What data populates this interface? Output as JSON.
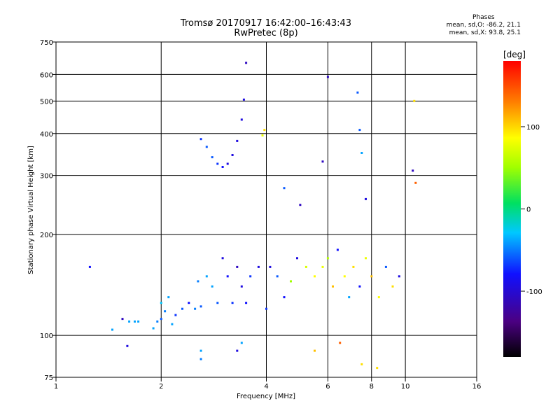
{
  "header": {
    "title": "Tromsø 20170917 16:42:00–16:43:43",
    "subtitle": "RwPretec (8p)"
  },
  "phases": {
    "heading": "Phases",
    "o_line": "mean, sd,O: -86.2, 21.1",
    "x_line": "mean, sd,X: 93.8, 25.1"
  },
  "colorbar": {
    "unit_label": "[deg]",
    "ticks": [
      "100",
      "0",
      "-100"
    ],
    "tick_values": [
      100,
      0,
      -100
    ],
    "range": [
      -180,
      180
    ]
  },
  "chart_data": {
    "type": "scatter",
    "xlabel": "Frequency [MHz]",
    "ylabel": "Stationary phase Virtual Height [km]",
    "xscale": "log",
    "yscale": "log",
    "xlim": [
      1,
      16
    ],
    "ylim": [
      75,
      750
    ],
    "xticks": [
      "1",
      "2",
      "4",
      "6",
      "8",
      "10",
      "16"
    ],
    "xtick_values": [
      1,
      2,
      4,
      6,
      8,
      10,
      16
    ],
    "yticks": [
      "750",
      "600",
      "500",
      "400",
      "300",
      "200",
      "100",
      "75"
    ],
    "ytick_values": [
      750,
      600,
      500,
      400,
      300,
      200,
      100,
      75
    ],
    "grid": true,
    "points": [
      [
        1.25,
        160,
        -100
      ],
      [
        1.45,
        104,
        -60
      ],
      [
        1.55,
        112,
        -120
      ],
      [
        1.6,
        93,
        -110
      ],
      [
        1.62,
        110,
        -60
      ],
      [
        1.68,
        110,
        -60
      ],
      [
        1.72,
        110,
        -60
      ],
      [
        1.9,
        105,
        -60
      ],
      [
        1.95,
        110,
        -70
      ],
      [
        2.0,
        112,
        -80
      ],
      [
        2.0,
        125,
        -50
      ],
      [
        2.05,
        118,
        -70
      ],
      [
        2.1,
        130,
        -60
      ],
      [
        2.15,
        108,
        -60
      ],
      [
        2.2,
        115,
        -90
      ],
      [
        2.3,
        120,
        -80
      ],
      [
        2.4,
        125,
        -100
      ],
      [
        2.5,
        120,
        -70
      ],
      [
        2.55,
        145,
        -70
      ],
      [
        2.6,
        122,
        -80
      ],
      [
        2.7,
        150,
        -60
      ],
      [
        2.8,
        140,
        -60
      ],
      [
        2.9,
        125,
        -80
      ],
      [
        3.0,
        170,
        -110
      ],
      [
        3.1,
        150,
        -100
      ],
      [
        3.2,
        125,
        -90
      ],
      [
        3.3,
        160,
        -120
      ],
      [
        3.4,
        140,
        -110
      ],
      [
        3.5,
        125,
        -100
      ],
      [
        3.6,
        150,
        -90
      ],
      [
        3.8,
        160,
        -110
      ],
      [
        4.0,
        120,
        -90
      ],
      [
        4.1,
        160,
        -110
      ],
      [
        4.3,
        150,
        -80
      ],
      [
        4.5,
        130,
        -100
      ],
      [
        4.7,
        145,
        50
      ],
      [
        4.9,
        170,
        -110
      ],
      [
        5.2,
        160,
        80
      ],
      [
        5.5,
        150,
        100
      ],
      [
        5.8,
        160,
        90
      ],
      [
        6.0,
        170,
        60
      ],
      [
        6.2,
        140,
        120
      ],
      [
        6.4,
        180,
        -100
      ],
      [
        6.7,
        150,
        100
      ],
      [
        6.9,
        130,
        -60
      ],
      [
        7.1,
        160,
        110
      ],
      [
        7.4,
        140,
        -100
      ],
      [
        7.7,
        170,
        90
      ],
      [
        8.0,
        150,
        120
      ],
      [
        8.4,
        130,
        100
      ],
      [
        8.8,
        160,
        -80
      ],
      [
        9.2,
        140,
        110
      ],
      [
        9.6,
        150,
        -110
      ],
      [
        2.6,
        385,
        -90
      ],
      [
        2.7,
        365,
        -80
      ],
      [
        2.8,
        340,
        -80
      ],
      [
        2.9,
        325,
        -90
      ],
      [
        3.0,
        318,
        -100
      ],
      [
        3.1,
        325,
        -110
      ],
      [
        3.2,
        345,
        -110
      ],
      [
        3.3,
        380,
        -110
      ],
      [
        3.4,
        440,
        -110
      ],
      [
        3.45,
        505,
        -110
      ],
      [
        3.5,
        650,
        -120
      ],
      [
        3.9,
        395,
        90
      ],
      [
        3.95,
        410,
        110
      ],
      [
        6.0,
        590,
        -120
      ],
      [
        7.3,
        530,
        -80
      ],
      [
        7.4,
        410,
        -80
      ],
      [
        7.5,
        350,
        -60
      ],
      [
        10.5,
        310,
        -120
      ],
      [
        10.6,
        500,
        110
      ],
      [
        10.7,
        285,
        150
      ],
      [
        4.5,
        275,
        -80
      ],
      [
        5.0,
        245,
        -120
      ],
      [
        7.7,
        255,
        -110
      ],
      [
        5.8,
        330,
        -120
      ],
      [
        2.6,
        90,
        -60
      ],
      [
        2.6,
        85,
        -70
      ],
      [
        3.3,
        90,
        -110
      ],
      [
        3.4,
        95,
        -60
      ],
      [
        5.5,
        90,
        120
      ],
      [
        6.5,
        95,
        150
      ],
      [
        7.5,
        82,
        110
      ],
      [
        8.3,
        80,
        110
      ]
    ]
  }
}
